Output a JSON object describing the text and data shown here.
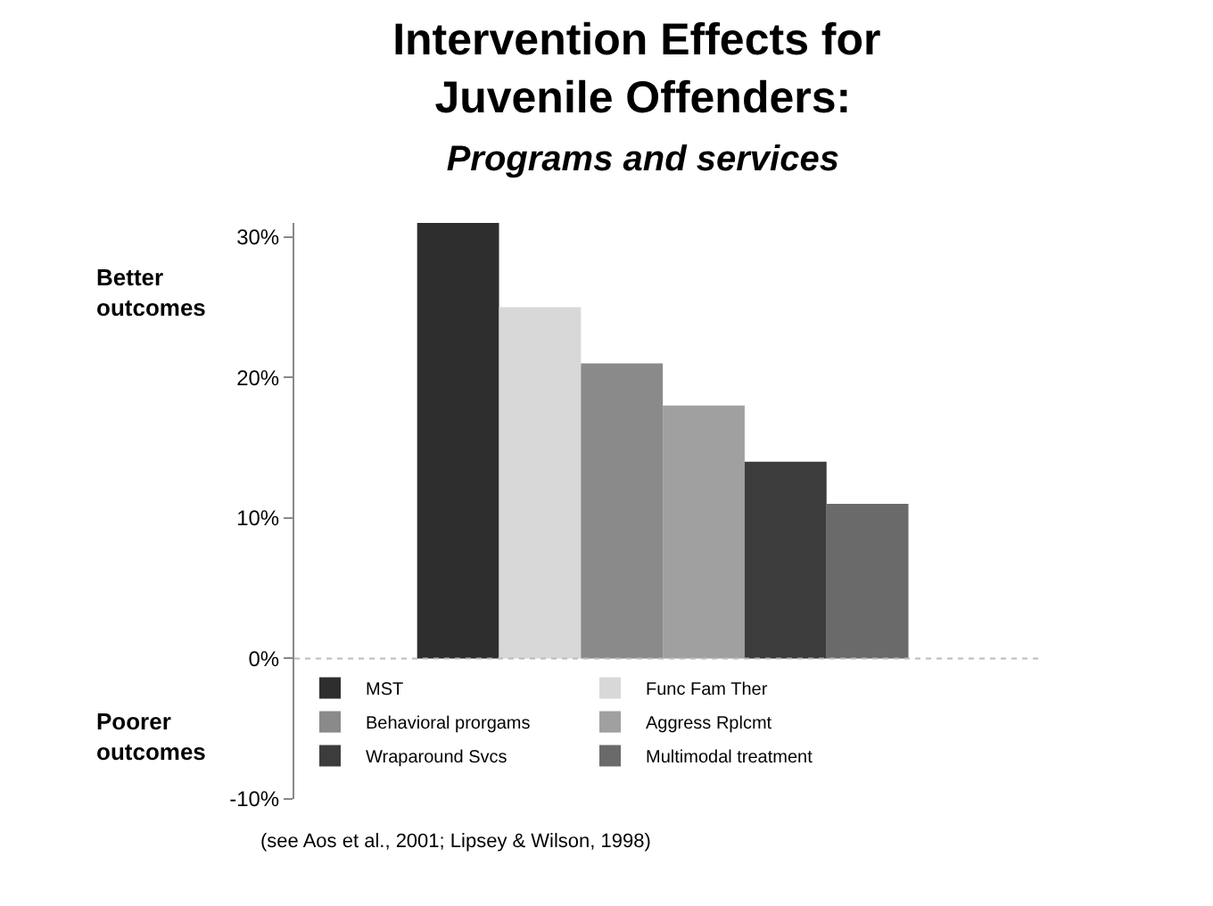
{
  "chart_data": {
    "type": "bar",
    "title": "Intervention Effects for Juvenile Offenders:",
    "subtitle": "Programs and services",
    "categories": [
      null
    ],
    "series": [
      {
        "name": "MST",
        "color": "#2e2e2e",
        "values": [
          31
        ]
      },
      {
        "name": "Func Fam Ther",
        "color": "#d8d8d8",
        "values": [
          25
        ]
      },
      {
        "name": "Behavioral prorgams",
        "color": "#8a8a8a",
        "values": [
          21
        ]
      },
      {
        "name": "Aggress Rplcmt",
        "color": "#a0a0a0",
        "values": [
          18
        ]
      },
      {
        "name": "Wraparound Svcs",
        "color": "#3c3c3c",
        "values": [
          14
        ]
      },
      {
        "name": "Multimodal treatment",
        "color": "#6a6a6a",
        "values": [
          11
        ]
      }
    ],
    "ylim": [
      -10,
      31
    ],
    "yticks": [
      {
        "value": -10,
        "label": "-10%"
      },
      {
        "value": 0,
        "label": "0%"
      },
      {
        "value": 10,
        "label": "10%"
      },
      {
        "value": 20,
        "label": "20%"
      },
      {
        "value": 30,
        "label": "30%"
      }
    ],
    "ref_lines": [
      {
        "axis": "y",
        "value": 0,
        "color": "#bbbbbb",
        "line_style": "dotted"
      }
    ],
    "annotations": [
      "Better outcomes",
      "Poorer outcomes",
      "(see Aos et al., 2001; Lipsey & Wilson, 1998)"
    ],
    "legend": "bottom"
  }
}
